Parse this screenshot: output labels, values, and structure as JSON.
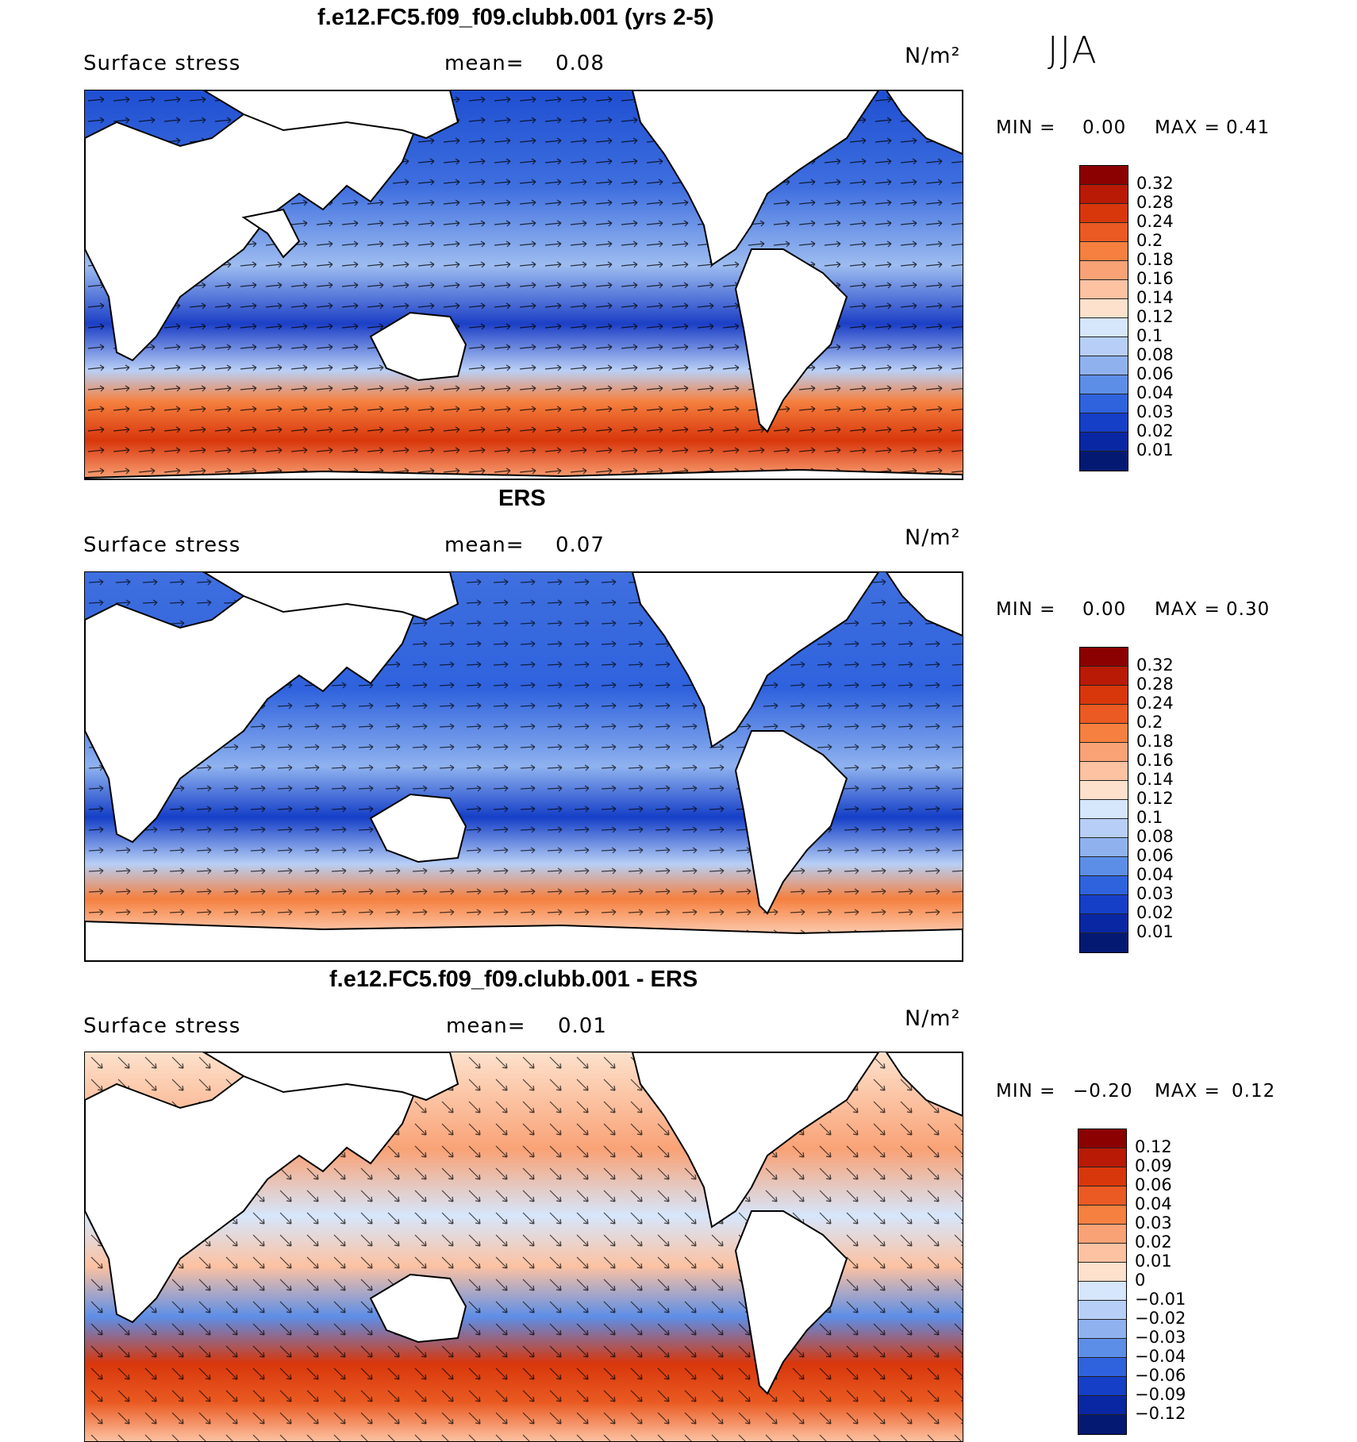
{
  "season": "JJA",
  "colors": {
    "land": "#ffffff",
    "coast": "#000000",
    "ocean_low": "#1f4fd1",
    "ocean_mid": "#9dbcf0",
    "ocean_high": "#e5572b"
  },
  "panels": [
    {
      "title": "f.e12.FC5.f09_f09.clubb.001 (yrs 2-5)",
      "variable": "Surface stress",
      "mean_label": "mean=",
      "mean_value": "0.08",
      "units": "N/m²",
      "min_label": "MIN =",
      "min_value": "0.00",
      "max_label": "MAX =",
      "max_value": "0.41",
      "map_name": "model-surface-stress-map",
      "colorbar": {
        "levels": [
          "0.32",
          "0.28",
          "0.24",
          "0.2",
          "0.18",
          "0.16",
          "0.14",
          "0.12",
          "0.1",
          "0.08",
          "0.06",
          "0.04",
          "0.03",
          "0.02",
          "0.01"
        ],
        "colors": [
          "#8b0000",
          "#b81a05",
          "#d8370b",
          "#ea5a22",
          "#f5803f",
          "#f9a276",
          "#fcc2a2",
          "#fde1cc",
          "#d6e6fb",
          "#b7cff6",
          "#8fb2ef",
          "#5d8ee7",
          "#2f62dd",
          "#153fc7",
          "#0a27a3",
          "#041a72"
        ]
      }
    },
    {
      "title": "ERS",
      "variable": "Surface stress",
      "mean_label": "mean=",
      "mean_value": "0.07",
      "units": "N/m²",
      "min_label": "MIN =",
      "min_value": "0.00",
      "max_label": "MAX =",
      "max_value": "0.30",
      "map_name": "ers-surface-stress-map",
      "colorbar": {
        "levels": [
          "0.32",
          "0.28",
          "0.24",
          "0.2",
          "0.18",
          "0.16",
          "0.14",
          "0.12",
          "0.1",
          "0.08",
          "0.06",
          "0.04",
          "0.03",
          "0.02",
          "0.01"
        ],
        "colors": [
          "#8b0000",
          "#b81a05",
          "#d8370b",
          "#ea5a22",
          "#f5803f",
          "#f9a276",
          "#fcc2a2",
          "#fde1cc",
          "#d6e6fb",
          "#b7cff6",
          "#8fb2ef",
          "#5d8ee7",
          "#2f62dd",
          "#153fc7",
          "#0a27a3",
          "#041a72"
        ]
      }
    },
    {
      "title": "f.e12.FC5.f09_f09.clubb.001 - ERS",
      "variable": "Surface stress",
      "mean_label": "mean=",
      "mean_value": "0.01",
      "units": "N/m²",
      "min_label": "MIN =",
      "min_value": "−0.20",
      "max_label": "MAX =",
      "max_value": "0.12",
      "map_name": "difference-surface-stress-map",
      "colorbar": {
        "levels": [
          "0.12",
          "0.09",
          "0.06",
          "0.04",
          "0.03",
          "0.02",
          "0.01",
          "0",
          "−0.01",
          "−0.02",
          "−0.03",
          "−0.04",
          "−0.06",
          "−0.09",
          "−0.12"
        ],
        "colors": [
          "#8b0000",
          "#b81a05",
          "#d8370b",
          "#ea5a22",
          "#f5803f",
          "#f9a276",
          "#fcc2a2",
          "#fde1cc",
          "#d6e6fb",
          "#b7cff6",
          "#8fb2ef",
          "#5d8ee7",
          "#2f62dd",
          "#153fc7",
          "#0a27a3",
          "#041a72"
        ]
      }
    }
  ]
}
